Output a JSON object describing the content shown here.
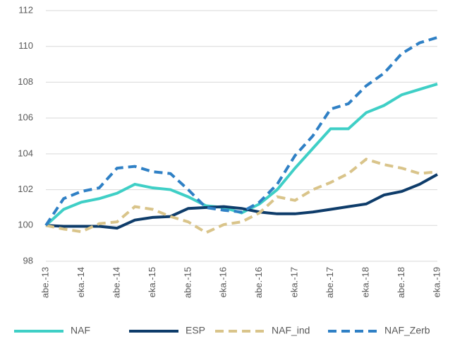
{
  "chart_data": {
    "type": "line",
    "categories": [
      "abe.-13",
      null,
      "eka.-14",
      null,
      "abe.-14",
      null,
      "eka.-15",
      null,
      "abe.-15",
      null,
      "eka.-16",
      null,
      "abe.-16",
      null,
      "eka.-17",
      null,
      "abe.-17",
      null,
      "eka.-18",
      null,
      "abe.-18",
      null,
      "eka.-19"
    ],
    "series": [
      {
        "name": "NAF",
        "color": "#3fcfc6",
        "dashed": false,
        "values": [
          100,
          100.9,
          101.3,
          101.5,
          101.8,
          102.3,
          102.1,
          102.0,
          101.6,
          101.1,
          101.0,
          100.7,
          101.2,
          102.0,
          103.2,
          104.3,
          105.4,
          105.4,
          106.3,
          106.7,
          107.3,
          107.6,
          107.9
        ]
      },
      {
        "name": "ESP",
        "color": "#0e3c6a",
        "dashed": false,
        "values": [
          100,
          99.95,
          99.95,
          99.95,
          99.85,
          100.3,
          100.45,
          100.5,
          100.95,
          101.0,
          101.05,
          100.95,
          100.75,
          100.65,
          100.65,
          100.75,
          100.9,
          101.05,
          101.2,
          101.7,
          101.9,
          102.3,
          102.85
        ]
      },
      {
        "name": "NAF_ind",
        "color": "#d9c48a",
        "dashed": true,
        "values": [
          100,
          99.8,
          99.65,
          100.1,
          100.2,
          101.05,
          100.9,
          100.5,
          100.2,
          99.6,
          100.05,
          100.2,
          100.7,
          101.6,
          101.4,
          102.0,
          102.4,
          102.9,
          103.7,
          103.4,
          103.2,
          102.9,
          103.0
        ]
      },
      {
        "name": "NAF_Zerb",
        "color": "#2f80c5",
        "dashed": true,
        "values": [
          100,
          101.5,
          101.9,
          102.1,
          103.2,
          103.3,
          103.0,
          102.9,
          102.0,
          101.0,
          100.85,
          100.75,
          101.3,
          102.3,
          103.9,
          105.0,
          106.5,
          106.8,
          107.8,
          108.5,
          109.6,
          110.2,
          110.5
        ]
      }
    ],
    "ylim": [
      98,
      112
    ],
    "yticks": [
      98,
      100,
      102,
      104,
      106,
      108,
      110,
      112
    ],
    "grid": true,
    "legend": "bottom"
  }
}
